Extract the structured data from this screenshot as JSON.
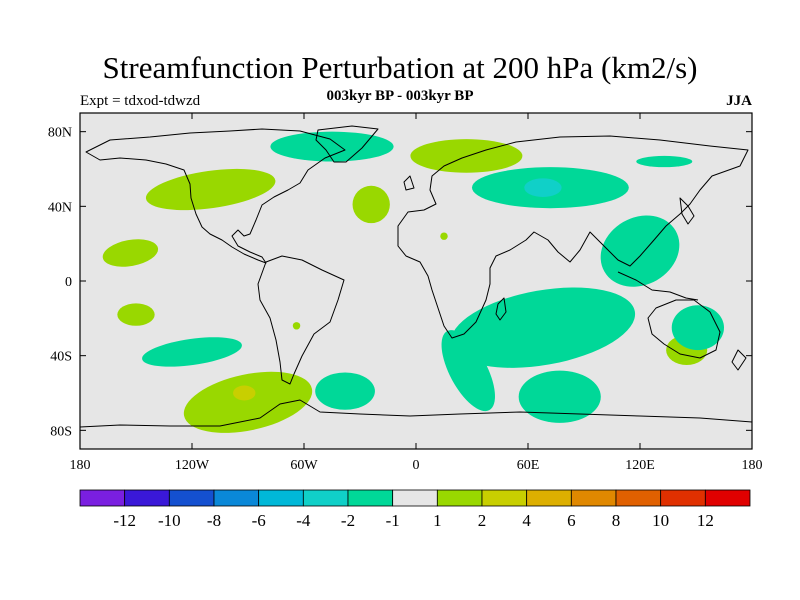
{
  "header": {
    "title": "Streamfunction Perturbation at 200 hPa (km2/s)",
    "subtitle": "003kyr BP - 003kyr BP",
    "left_label": "Expt = tdxod-tdwzd",
    "right_label": "JJA"
  },
  "chart_data": {
    "type": "contour-map",
    "projection": "cylindrical-equidistant",
    "lon_range": [
      -180,
      180
    ],
    "lat_range": [
      -90,
      90
    ],
    "x_ticks": [
      {
        "value": -180,
        "label": "180"
      },
      {
        "value": -120,
        "label": "120W"
      },
      {
        "value": -60,
        "label": "60W"
      },
      {
        "value": 0,
        "label": "0"
      },
      {
        "value": 60,
        "label": "60E"
      },
      {
        "value": 120,
        "label": "120E"
      },
      {
        "value": 180,
        "label": "180"
      }
    ],
    "y_ticks": [
      {
        "value": 80,
        "label": "80N"
      },
      {
        "value": 40,
        "label": "40N"
      },
      {
        "value": 0,
        "label": "0"
      },
      {
        "value": -40,
        "label": "40S"
      },
      {
        "value": -80,
        "label": "80S"
      }
    ],
    "colorbar": {
      "colors": [
        "#7a1fe0",
        "#3a18d8",
        "#1450d0",
        "#0a88d8",
        "#00b8d8",
        "#10d0c8",
        "#00d898",
        "#e6e6e6",
        "#99d800",
        "#c8cf00",
        "#ddaf00",
        "#e08800",
        "#e06000",
        "#e03000",
        "#e00000"
      ],
      "labels": [
        "-12",
        "-10",
        "-8",
        "-6",
        "-4",
        "-2",
        "-1",
        "1",
        "2",
        "4",
        "6",
        "8",
        "10",
        "12"
      ]
    },
    "regions": [
      {
        "label": "positive 1-2",
        "color": "#99d800",
        "center": [
          -110,
          49
        ],
        "radius": [
          35,
          10
        ],
        "rotation_deg": -8
      },
      {
        "label": "positive 1-2",
        "color": "#99d800",
        "center": [
          -24,
          41
        ],
        "radius": [
          10,
          10
        ],
        "rotation_deg": 0
      },
      {
        "label": "positive 1-2",
        "color": "#99d800",
        "center": [
          27,
          67
        ],
        "radius": [
          30,
          9
        ],
        "rotation_deg": 0
      },
      {
        "label": "positive 1-2",
        "color": "#99d800",
        "center": [
          -153,
          15
        ],
        "radius": [
          15,
          7
        ],
        "rotation_deg": -10
      },
      {
        "label": "positive 1-2",
        "color": "#99d800",
        "center": [
          -150,
          -18
        ],
        "radius": [
          10,
          6
        ],
        "rotation_deg": 0
      },
      {
        "label": "positive 1-2",
        "color": "#99d800",
        "center": [
          -90,
          -65
        ],
        "radius": [
          35,
          15
        ],
        "rotation_deg": -12
      },
      {
        "label": "positive 2-4",
        "color": "#c8cf00",
        "center": [
          -92,
          -60
        ],
        "radius": [
          6,
          4
        ],
        "rotation_deg": 0
      },
      {
        "label": "positive 1-2",
        "color": "#99d800",
        "center": [
          145,
          -37
        ],
        "radius": [
          11,
          8
        ],
        "rotation_deg": 0
      },
      {
        "label": "positive 1-2",
        "color": "#99d800",
        "center": [
          -64,
          -24
        ],
        "radius": [
          2,
          2
        ],
        "rotation_deg": 0
      },
      {
        "label": "positive 1-2",
        "color": "#99d800",
        "center": [
          15,
          24
        ],
        "radius": [
          2,
          2
        ],
        "rotation_deg": 0
      },
      {
        "label": "negative -1",
        "color": "#00d898",
        "center": [
          -45,
          72
        ],
        "radius": [
          33,
          8
        ],
        "rotation_deg": 0
      },
      {
        "label": "negative -1",
        "color": "#00d898",
        "center": [
          72,
          50
        ],
        "radius": [
          42,
          11
        ],
        "rotation_deg": 0
      },
      {
        "label": "negative -2",
        "color": "#10d0c8",
        "center": [
          68,
          50
        ],
        "radius": [
          10,
          5
        ],
        "rotation_deg": 0
      },
      {
        "label": "negative -1",
        "color": "#00d898",
        "center": [
          133,
          64
        ],
        "radius": [
          15,
          3
        ],
        "rotation_deg": 0
      },
      {
        "label": "negative -1",
        "color": "#00d898",
        "center": [
          120,
          16
        ],
        "radius": [
          22,
          18
        ],
        "rotation_deg": -30
      },
      {
        "label": "negative -1",
        "color": "#00d898",
        "center": [
          68,
          -25
        ],
        "radius": [
          50,
          20
        ],
        "rotation_deg": -10
      },
      {
        "label": "negative -1",
        "color": "#00d898",
        "center": [
          28,
          -48
        ],
        "radius": [
          10,
          24
        ],
        "rotation_deg": -28
      },
      {
        "label": "negative -1",
        "color": "#00d898",
        "center": [
          -38,
          -59
        ],
        "radius": [
          16,
          10
        ],
        "rotation_deg": 0
      },
      {
        "label": "negative -1",
        "color": "#00d898",
        "center": [
          77,
          -62
        ],
        "radius": [
          22,
          14
        ],
        "rotation_deg": 0
      },
      {
        "label": "negative -1",
        "color": "#00d898",
        "center": [
          151,
          -25
        ],
        "radius": [
          14,
          12
        ],
        "rotation_deg": 0
      },
      {
        "label": "negative -1",
        "color": "#00d898",
        "center": [
          -120,
          -38
        ],
        "radius": [
          27,
          7
        ],
        "rotation_deg": -8
      }
    ]
  }
}
